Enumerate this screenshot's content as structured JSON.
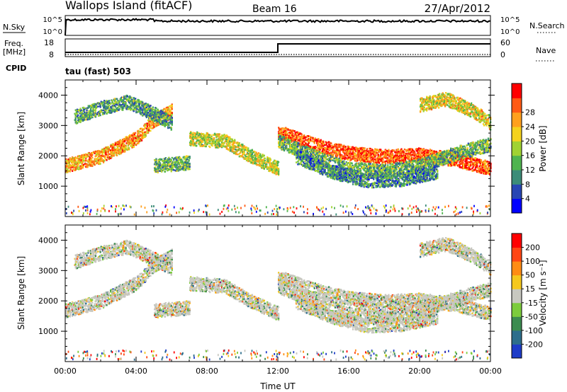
{
  "header": {
    "site": "Wallops Island (fitACF)",
    "beam": "Beam 16",
    "date": "27/Apr/2012"
  },
  "noise_panel": {
    "left_label": "N.Sky",
    "right_label": "N.Search",
    "left_ticks": [
      "10^5",
      "10^0"
    ],
    "right_ticks": [
      "10^5",
      "10^0"
    ],
    "trace_level": 0.72
  },
  "freq_panel": {
    "left_label_1": "Freq.",
    "left_label_2": "[MHz]",
    "right_label": "Nave",
    "left_ticks": [
      "18",
      "8"
    ],
    "right_ticks": [
      "60",
      "0"
    ],
    "freq_step_time_hours": 12,
    "freq_before": 10.4,
    "freq_after": 15.2,
    "ylim": [
      8,
      18
    ]
  },
  "cpid": {
    "label": "CPID",
    "value": "tau (fast) 503"
  },
  "chart_data": [
    {
      "type": "heatmap",
      "title": "Power",
      "xlabel": "",
      "ylabel": "Slant Range [km]",
      "xlim": [
        0,
        24
      ],
      "ylim": [
        0,
        4500
      ],
      "yticks": [
        1000,
        2000,
        3000,
        4000
      ],
      "colorbar": {
        "label": "Power [dB]",
        "ticks": [
          "4",
          "8",
          "12",
          "16",
          "20",
          "24",
          "28"
        ],
        "colors": [
          "#0000ff",
          "#2846b4",
          "#3c8c78",
          "#4fb44f",
          "#a0d232",
          "#f5d21e",
          "#ffa01e",
          "#ff5a14",
          "#ff0000"
        ]
      },
      "bands": [
        {
          "t": [
            0,
            2,
            4,
            5,
            6
          ],
          "r": [
            1700,
            2000,
            2600,
            3200,
            3500
          ],
          "level": 0.7
        },
        {
          "t": [
            0.5,
            2,
            3.5,
            5,
            6
          ],
          "r": [
            3300,
            3600,
            3800,
            3400,
            3100
          ],
          "level": 0.35
        },
        {
          "t": [
            5,
            6,
            7
          ],
          "r": [
            1700,
            1750,
            1800
          ],
          "level": 0.4
        },
        {
          "t": [
            7,
            9,
            10.5,
            12
          ],
          "r": [
            2600,
            2500,
            2000,
            1600
          ],
          "level": 0.55
        },
        {
          "t": [
            12,
            14,
            16,
            18,
            20,
            22,
            24
          ],
          "r": [
            2800,
            2400,
            2100,
            2000,
            2050,
            1900,
            1600
          ],
          "level": 0.85
        },
        {
          "t": [
            12,
            14,
            16,
            18,
            20,
            22,
            24
          ],
          "r": [
            2500,
            2000,
            1600,
            1500,
            1700,
            2100,
            2400
          ],
          "level": 0.4
        },
        {
          "t": [
            13,
            15,
            17,
            19,
            21
          ],
          "r": [
            2000,
            1500,
            1200,
            1250,
            1500
          ],
          "level": 0.3
        },
        {
          "t": [
            20,
            21.5,
            23,
            24
          ],
          "r": [
            3700,
            3900,
            3500,
            3100
          ],
          "level": 0.6
        }
      ]
    },
    {
      "type": "heatmap",
      "title": "Velocity",
      "xlabel": "Time UT",
      "ylabel": "Slant Range [km]",
      "xlim": [
        0,
        24
      ],
      "ylim": [
        0,
        4500
      ],
      "yticks": [
        1000,
        2000,
        3000,
        4000
      ],
      "xticks": [
        "00:00",
        "04:00",
        "08:00",
        "12:00",
        "16:00",
        "20:00",
        "00:00"
      ],
      "colorbar": {
        "label": "Velocity [m s⁻¹]",
        "ticks": [
          "200",
          "100",
          "50",
          "15",
          "-15",
          "-50",
          "-100",
          "-200"
        ],
        "colors": [
          "#1e3cc8",
          "#2d6e8c",
          "#3c8c50",
          "#7ccc3c",
          "#c8c8c0",
          "#f5c81e",
          "#ff8c14",
          "#ff4614",
          "#ff0000"
        ]
      },
      "ground_scatter_color": "#c8c8c0"
    }
  ]
}
